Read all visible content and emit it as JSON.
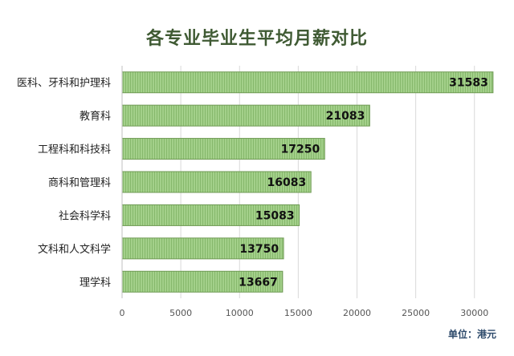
{
  "chart_data": {
    "type": "bar",
    "orientation": "horizontal",
    "title": "各专业毕业生平均月薪对比",
    "unit_note": "单位：港元",
    "categories": [
      "医科、牙科和护理科",
      "教育科",
      "工程科和科技科",
      "商科和管理科",
      "社会科学科",
      "文科和人文科学",
      "理学科"
    ],
    "values": [
      31583,
      21083,
      17250,
      16083,
      15083,
      13750,
      13667
    ],
    "data_labels": [
      "31583",
      "21083",
      "17250",
      "16083",
      "15083",
      "13750",
      "13667"
    ],
    "x_ticks": [
      0,
      5000,
      10000,
      15000,
      20000,
      25000,
      30000
    ],
    "x_tick_labels": [
      "0",
      "5000",
      "10000",
      "15000",
      "20000",
      "25000",
      "30000"
    ],
    "xlim": [
      0,
      32000
    ],
    "grid": true,
    "legend": "none",
    "bar_color": "#a3d08a",
    "bar_edge_color": "#6f9a54",
    "title_color": "#3f5a33"
  }
}
